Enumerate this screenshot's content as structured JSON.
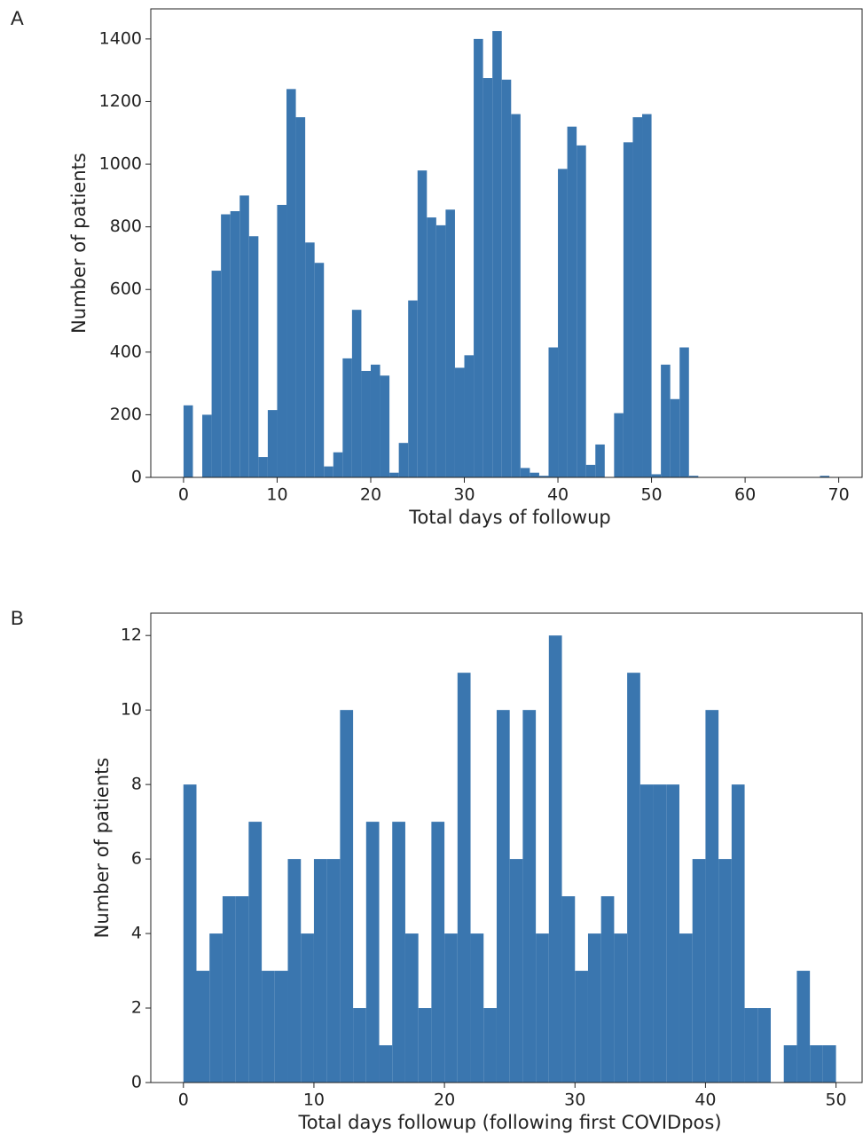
{
  "chart_data": [
    {
      "type": "histogram",
      "panel_label": "A",
      "x_label": "Total days of followup",
      "y_label": "Number of patients",
      "color": "#3a76af",
      "bins": [
        0,
        1,
        2,
        3,
        4,
        5,
        6,
        7,
        8,
        9,
        10,
        11,
        12,
        13,
        14,
        15,
        16,
        17,
        18,
        19,
        20,
        21,
        22,
        23,
        24,
        25,
        26,
        27,
        28,
        29,
        30,
        31,
        32,
        33,
        34,
        35,
        36,
        37,
        38,
        39,
        40,
        41,
        42,
        43,
        44,
        45,
        46,
        47,
        48,
        49,
        50,
        51,
        52,
        53,
        54,
        55,
        56,
        57,
        58,
        59,
        60,
        61,
        62,
        63,
        64,
        65,
        66,
        67,
        68,
        69,
        70
      ],
      "values": [
        230,
        0,
        200,
        660,
        840,
        850,
        900,
        770,
        65,
        215,
        870,
        1240,
        1150,
        750,
        685,
        35,
        80,
        380,
        535,
        340,
        360,
        325,
        15,
        110,
        565,
        980,
        830,
        805,
        855,
        350,
        390,
        1400,
        1275,
        1425,
        1270,
        1160,
        30,
        15,
        5,
        415,
        985,
        1120,
        1060,
        40,
        105,
        0,
        205,
        1070,
        1150,
        1160,
        10,
        360,
        250,
        415,
        5,
        0,
        0,
        0,
        0,
        0,
        0,
        0,
        0,
        0,
        0,
        0,
        0,
        0,
        5,
        0
      ],
      "xlim": [
        -3.5,
        72.5
      ],
      "xticks": [
        0,
        10,
        20,
        30,
        40,
        50,
        60,
        70
      ],
      "ylim": [
        0,
        1496
      ],
      "yticks": [
        0,
        200,
        400,
        600,
        800,
        1000,
        1200,
        1400
      ]
    },
    {
      "type": "histogram",
      "panel_label": "B",
      "x_label": "Total days followup (following first COVIDpos)",
      "y_label": "Number of patients",
      "color": "#3a76af",
      "bins": [
        0,
        1,
        2,
        3,
        4,
        5,
        6,
        7,
        8,
        9,
        10,
        11,
        12,
        13,
        14,
        15,
        16,
        17,
        18,
        19,
        20,
        21,
        22,
        23,
        24,
        25,
        26,
        27,
        28,
        29,
        30,
        31,
        32,
        33,
        34,
        35,
        36,
        37,
        38,
        39,
        40,
        41,
        42,
        43,
        44,
        45,
        46,
        47,
        48,
        49,
        50
      ],
      "values": [
        8,
        3,
        4,
        5,
        5,
        7,
        3,
        3,
        6,
        4,
        6,
        6,
        10,
        2,
        7,
        1,
        7,
        4,
        2,
        7,
        4,
        11,
        4,
        2,
        10,
        6,
        10,
        4,
        12,
        5,
        3,
        4,
        5,
        4,
        11,
        8,
        8,
        8,
        4,
        6,
        10,
        6,
        8,
        2,
        2,
        0,
        1,
        3,
        1,
        1
      ],
      "xlim": [
        -2.5,
        52
      ],
      "xticks": [
        0,
        10,
        20,
        30,
        40,
        50
      ],
      "ylim": [
        0,
        12.6
      ],
      "yticks": [
        0,
        2,
        4,
        6,
        8,
        10,
        12
      ]
    }
  ]
}
